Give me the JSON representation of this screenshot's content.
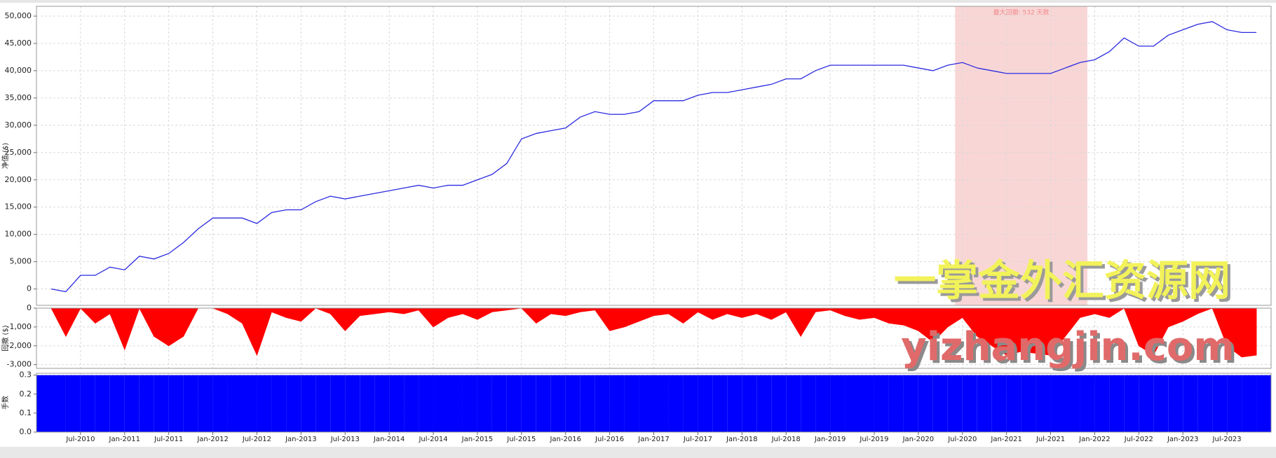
{
  "chart_data": {
    "type": "multi",
    "grid": true,
    "x": [
      "Mar-2010",
      "May-2010",
      "Jul-2010",
      "Sep-2010",
      "Nov-2010",
      "Jan-2011",
      "Mar-2011",
      "May-2011",
      "Jul-2011",
      "Sep-2011",
      "Nov-2011",
      "Jan-2012",
      "Mar-2012",
      "May-2012",
      "Jul-2012",
      "Sep-2012",
      "Nov-2012",
      "Jan-2013",
      "Mar-2013",
      "May-2013",
      "Jul-2013",
      "Sep-2013",
      "Nov-2013",
      "Jan-2014",
      "Mar-2014",
      "May-2014",
      "Jul-2014",
      "Sep-2014",
      "Nov-2014",
      "Jan-2015",
      "Mar-2015",
      "May-2015",
      "Jul-2015",
      "Sep-2015",
      "Nov-2015",
      "Jan-2016",
      "Mar-2016",
      "May-2016",
      "Jul-2016",
      "Sep-2016",
      "Nov-2016",
      "Jan-2017",
      "Mar-2017",
      "May-2017",
      "Jul-2017",
      "Sep-2017",
      "Nov-2017",
      "Jan-2018",
      "Mar-2018",
      "May-2018",
      "Jul-2018",
      "Sep-2018",
      "Nov-2018",
      "Jan-2019",
      "Mar-2019",
      "May-2019",
      "Jul-2019",
      "Sep-2019",
      "Nov-2019",
      "Jan-2020",
      "Mar-2020",
      "May-2020",
      "Jul-2020",
      "Sep-2020",
      "Nov-2020",
      "Jan-2021",
      "Mar-2021",
      "May-2021",
      "Jul-2021",
      "Sep-2021",
      "Nov-2021",
      "Jan-2022",
      "Mar-2022",
      "May-2022",
      "Jul-2022",
      "Sep-2022",
      "Nov-2022",
      "Jan-2023",
      "Mar-2023",
      "May-2023",
      "Jul-2023",
      "Sep-2023",
      "Nov-2023"
    ],
    "xlim": [
      "Jan-2010",
      "Jan-2024"
    ],
    "xticks": [
      "Jul-2010",
      "Jan-2011",
      "Jul-2011",
      "Jan-2012",
      "Jul-2012",
      "Jan-2013",
      "Jul-2013",
      "Jan-2014",
      "Jul-2014",
      "Jan-2015",
      "Jul-2015",
      "Jan-2016",
      "Jul-2016",
      "Jan-2017",
      "Jul-2017",
      "Jan-2018",
      "Jul-2018",
      "Jan-2019",
      "Jul-2019",
      "Jan-2020",
      "Jul-2020",
      "Jan-2021",
      "Jul-2021",
      "Jan-2022",
      "Jul-2022",
      "Jan-2023",
      "Jul-2023"
    ],
    "highlight": {
      "x": [
        "Jun-2020",
        "Dec-2021"
      ],
      "color": "#f9d6d6",
      "label": "最大回撤: 532 天数"
    },
    "watermark": [
      "一掌金外汇资源网",
      "yizhangjin.com"
    ],
    "panels": [
      {
        "type": "line",
        "ylabel": "净值 ($)",
        "color": "#2a2ae0",
        "ylim": [
          -3000,
          51800
        ],
        "yticks": [
          0,
          {
            "value": 5000,
            "label": "5,000"
          },
          {
            "value": 10000,
            "label": "10,000"
          },
          {
            "value": 15000,
            "label": "15,000"
          },
          {
            "value": 20000,
            "label": "20,000"
          },
          {
            "value": 25000,
            "label": "25,000"
          },
          {
            "value": 30000,
            "label": "30,000"
          },
          {
            "value": 35000,
            "label": "35,000"
          },
          {
            "value": 40000,
            "label": "40,000"
          },
          {
            "value": 45000,
            "label": "45,000"
          },
          {
            "value": 50000,
            "label": "50,000"
          }
        ],
        "values": [
          0,
          -500,
          2500,
          2500,
          4000,
          3500,
          6000,
          5500,
          6500,
          8500,
          11000,
          13000,
          13000,
          13000,
          12000,
          14000,
          14500,
          14500,
          16000,
          17000,
          16500,
          17000,
          17500,
          18000,
          18500,
          19000,
          18500,
          19000,
          19000,
          20000,
          21000,
          23000,
          27500,
          28500,
          29000,
          29500,
          31500,
          32500,
          32000,
          32000,
          32500,
          34500,
          34500,
          34500,
          35500,
          36000,
          36000,
          36500,
          37000,
          37500,
          38500,
          38500,
          40000,
          41000,
          41000,
          41000,
          41000,
          41000,
          41000,
          40500,
          40000,
          41000,
          41500,
          40500,
          40000,
          39500,
          39500,
          39500,
          39500,
          40500,
          41500,
          42000,
          43500,
          46000,
          44500,
          44500,
          46500,
          47500,
          48500,
          49000,
          47500,
          47000,
          47000
        ]
      },
      {
        "type": "area",
        "ylabel": "回撤 ($)",
        "color": "#ff0000",
        "ylim": [
          -3200,
          0
        ],
        "yticks": [
          0,
          {
            "value": -1000,
            "label": "-1,000"
          },
          {
            "value": -2000,
            "label": "-2,000"
          },
          {
            "value": -3000,
            "label": "-3,000"
          }
        ],
        "values": [
          0,
          -1500,
          0,
          -800,
          -300,
          -2200,
          0,
          -1500,
          -2000,
          -1500,
          0,
          0,
          -300,
          -800,
          -2500,
          -200,
          -500,
          -700,
          0,
          -300,
          -1200,
          -400,
          -300,
          -200,
          -300,
          -100,
          -1000,
          -500,
          -300,
          -600,
          -200,
          -100,
          0,
          -800,
          -300,
          -400,
          -200,
          -100,
          -1200,
          -1000,
          -700,
          -400,
          -300,
          -800,
          -200,
          -600,
          -300,
          -500,
          -300,
          -600,
          -200,
          -1500,
          -200,
          -100,
          -400,
          -600,
          -500,
          -800,
          -900,
          -1200,
          -1800,
          -1000,
          -500,
          -1500,
          -2000,
          -2500,
          -2300,
          -2400,
          -2500,
          -1500,
          -500,
          -300,
          -500,
          0,
          -2000,
          -2500,
          -1000,
          -700,
          -300,
          0,
          -2000,
          -2600,
          -2500
        ]
      },
      {
        "type": "bar",
        "ylabel": "手数",
        "color": "#0000ff",
        "ylim": [
          0,
          0.31
        ],
        "yticks": [
          {
            "value": 0,
            "label": "0.0"
          },
          0.1,
          0.2,
          0.3
        ],
        "values": [
          0.3,
          0.3,
          0.3,
          0.3,
          0.3,
          0.3,
          0.3,
          0.3,
          0.3,
          0.3,
          0.3,
          0.3,
          0.3,
          0.3,
          0.3,
          0.3,
          0.3,
          0.3,
          0.3,
          0.3,
          0.3,
          0.3,
          0.3,
          0.3,
          0.3,
          0.3,
          0.3,
          0.3,
          0.3,
          0.3,
          0.3,
          0.3,
          0.3,
          0.3,
          0.3,
          0.3,
          0.3,
          0.3,
          0.3,
          0.3,
          0.3,
          0.3,
          0.3,
          0.3,
          0.3,
          0.3,
          0.3,
          0.3,
          0.3,
          0.3,
          0.3,
          0.3,
          0.3,
          0.3,
          0.3,
          0.3,
          0.3,
          0.3,
          0.3,
          0.3,
          0.3,
          0.3,
          0.3,
          0.3,
          0.3,
          0.3,
          0.3,
          0.3,
          0.3,
          0.3,
          0.3,
          0.3,
          0.3,
          0.3,
          0.3,
          0.3,
          0.3,
          0.3,
          0.3,
          0.3,
          0.3,
          0.3,
          0.3
        ]
      }
    ]
  }
}
